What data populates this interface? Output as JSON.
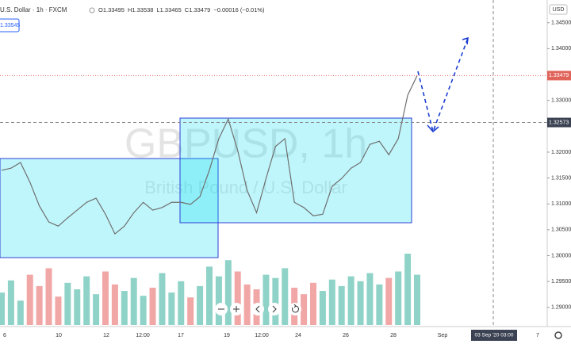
{
  "header": {
    "symbol": "U.S. Dollar · 1h · FXCM",
    "ohlc": [
      "O1.33495",
      "H1.33538",
      "L1.33465",
      "C1.33479",
      "−0.00016 (−0.01%)"
    ],
    "side_price": "1.33545",
    "currency": "USD"
  },
  "watermark": {
    "title": "GBPUSD, 1h",
    "subtitle": "British Pound / U.S. Dollar"
  },
  "chart_data": {
    "type": "line",
    "color": "#6f6f6f",
    "values": [
      1.3165,
      1.3169,
      1.318,
      1.3142,
      1.3096,
      1.3065,
      1.3057,
      1.3073,
      1.3088,
      1.3103,
      1.3111,
      1.308,
      1.3042,
      1.3057,
      1.3083,
      1.3103,
      1.3088,
      1.3093,
      1.3103,
      1.3103,
      1.3099,
      1.3114,
      1.3165,
      1.3226,
      1.3264,
      1.3203,
      1.3126,
      1.3083,
      1.3149,
      1.3211,
      1.3226,
      1.3103,
      1.3093,
      1.3077,
      1.308,
      1.3134,
      1.3149,
      1.3169,
      1.318,
      1.3215,
      1.3221,
      1.3195,
      1.3226,
      1.331,
      1.3348
    ],
    "volume": [
      40,
      55,
      30,
      62,
      48,
      70,
      35,
      52,
      44,
      60,
      38,
      66,
      50,
      42,
      58,
      36,
      46,
      64,
      40,
      54,
      34,
      48,
      72,
      60,
      80,
      66,
      50,
      44,
      62,
      58,
      70,
      46,
      38,
      52,
      42,
      56,
      48,
      60,
      54,
      64,
      50,
      58,
      66,
      88,
      62
    ],
    "up_color": "#8fd3c8",
    "down_color": "#f2a7a7",
    "ylim": [
      1.2866,
      1.3494
    ],
    "yticks": [
      {
        "value": 1.345,
        "label": "1.34500"
      },
      {
        "value": 1.34,
        "label": "1.34000"
      },
      {
        "value": 1.33,
        "label": "1.33000"
      },
      {
        "value": 1.32,
        "label": "1.32000"
      },
      {
        "value": 1.315,
        "label": "1.31500"
      },
      {
        "value": 1.31,
        "label": "1.31000"
      },
      {
        "value": 1.305,
        "label": "1.30500"
      },
      {
        "value": 1.3,
        "label": "1.30000"
      },
      {
        "value": 1.295,
        "label": "1.29500"
      },
      {
        "value": 1.29,
        "label": "1.29000"
      }
    ],
    "last_price": {
      "value": 1.33479,
      "label": "1.33479"
    },
    "crosshair_price": {
      "value": 1.32573,
      "label": "1.32573"
    },
    "time_labels": [
      "6",
      "10",
      "12",
      "12:00",
      "17",
      "19",
      "12:00",
      "24",
      "26",
      "28",
      "Sep",
      "7"
    ],
    "crosshair_time": "03 Sep '20  03:00"
  }
}
